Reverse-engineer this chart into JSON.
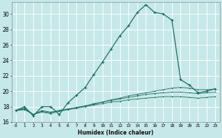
{
  "xlabel": "Humidex (Indice chaleur)",
  "bg_color": "#c6e8e8",
  "grid_color": "#ffffff",
  "line_color": "#1a6b60",
  "xlim": [
    -0.5,
    23.5
  ],
  "ylim": [
    16,
    31.5
  ],
  "yticks": [
    16,
    18,
    20,
    22,
    24,
    26,
    28,
    30
  ],
  "xticks": [
    0,
    1,
    2,
    3,
    4,
    5,
    6,
    7,
    8,
    9,
    10,
    11,
    12,
    13,
    14,
    15,
    16,
    17,
    18,
    19,
    20,
    21,
    22,
    23
  ],
  "xtick_labels": [
    "0",
    "1",
    "2",
    "3",
    "4",
    "5",
    "6",
    "7",
    "8",
    "9",
    "10",
    "11",
    "12",
    "13",
    "14",
    "15",
    "16",
    "17",
    "18",
    "19",
    "20",
    "21",
    "22",
    "23"
  ],
  "series_main": {
    "x": [
      0,
      1,
      2,
      3,
      4,
      5,
      6,
      7,
      8,
      9,
      10,
      11,
      12,
      13,
      14,
      15,
      16,
      17,
      18,
      19,
      20,
      21,
      22,
      23
    ],
    "y": [
      17.5,
      18.0,
      16.8,
      18.0,
      18.0,
      17.0,
      18.5,
      19.5,
      20.5,
      22.2,
      23.8,
      25.5,
      27.2,
      28.5,
      30.2,
      31.2,
      30.2,
      30.0,
      29.2,
      21.5,
      20.8,
      19.8,
      20.0,
      20.3
    ]
  },
  "series_flat": [
    {
      "x": [
        0,
        1,
        2,
        3,
        4,
        5,
        6,
        7,
        8,
        9,
        10,
        11,
        12,
        13,
        14,
        15,
        16,
        17,
        18,
        19,
        20,
        21,
        22,
        23
      ],
      "y": [
        17.5,
        17.8,
        17.0,
        17.5,
        17.3,
        17.5,
        17.7,
        17.9,
        18.1,
        18.4,
        18.6,
        18.9,
        19.1,
        19.4,
        19.6,
        19.8,
        20.0,
        20.2,
        20.4,
        20.5,
        20.4,
        20.2,
        20.2,
        20.3
      ]
    },
    {
      "x": [
        0,
        1,
        2,
        3,
        4,
        5,
        6,
        7,
        8,
        9,
        10,
        11,
        12,
        13,
        14,
        15,
        16,
        17,
        18,
        19,
        20,
        21,
        22,
        23
      ],
      "y": [
        17.5,
        17.7,
        17.0,
        17.4,
        17.2,
        17.5,
        17.7,
        17.9,
        18.1,
        18.3,
        18.6,
        18.8,
        19.0,
        19.2,
        19.4,
        19.6,
        19.7,
        19.8,
        19.9,
        19.9,
        19.8,
        19.7,
        19.8,
        19.9
      ]
    },
    {
      "x": [
        0,
        1,
        2,
        3,
        4,
        5,
        6,
        7,
        8,
        9,
        10,
        11,
        12,
        13,
        14,
        15,
        16,
        17,
        18,
        19,
        20,
        21,
        22,
        23
      ],
      "y": [
        17.5,
        17.6,
        17.0,
        17.3,
        17.1,
        17.4,
        17.6,
        17.8,
        18.0,
        18.2,
        18.4,
        18.6,
        18.7,
        18.9,
        19.0,
        19.1,
        19.2,
        19.3,
        19.3,
        19.3,
        19.2,
        19.1,
        19.2,
        19.3
      ]
    }
  ]
}
